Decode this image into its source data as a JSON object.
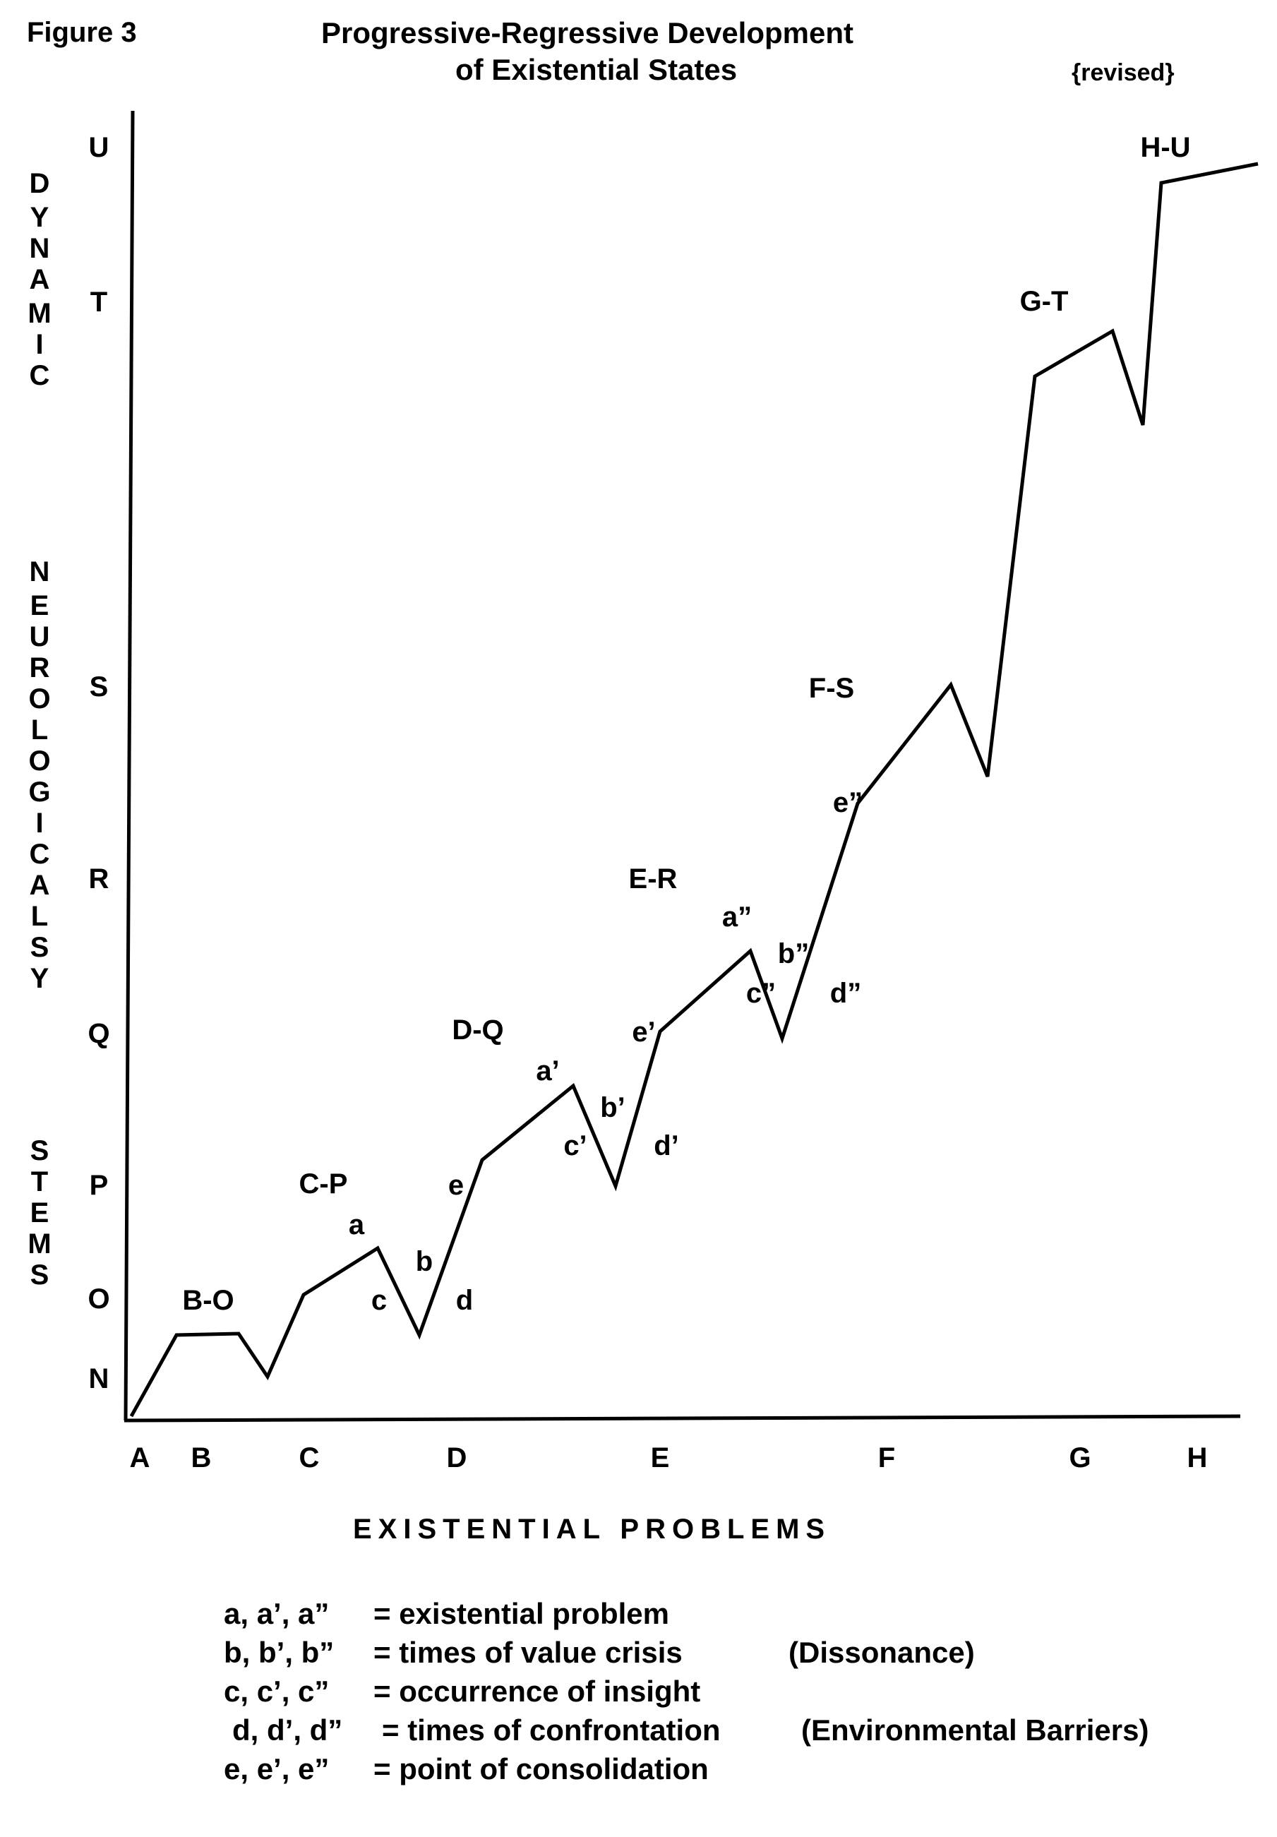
{
  "figure_label": "Figure 3",
  "title_line1": "Progressive-Regressive Development",
  "title_line2": "of Existential States",
  "revised_note": "{revised}",
  "vertical_axis_label": "DYNAMIC NEUROLOGICAL SYSTEMS",
  "x_axis_title": "EXISTENTIAL PROBLEMS",
  "y_levels": [
    "N",
    "O",
    "P",
    "Q",
    "R",
    "S",
    "T",
    "U"
  ],
  "x_levels": [
    "A",
    "B",
    "C",
    "D",
    "E",
    "F",
    "G",
    "H"
  ],
  "state_labels": [
    "B-O",
    "C-P",
    "D-Q",
    "E-R",
    "F-S",
    "G-T",
    "H-U"
  ],
  "point_labels": [
    "a",
    "b",
    "c",
    "d",
    "e",
    "a’",
    "b’",
    "c’",
    "d’",
    "e’",
    "a”",
    "b”",
    "c”",
    "d”",
    "e”"
  ],
  "legend": [
    {
      "key": "a, a’, a”",
      "desc": "= existential problem",
      "note": ""
    },
    {
      "key": "b, b’, b”",
      "desc": "= times of value crisis",
      "note": "(Dissonance)"
    },
    {
      "key": "c, c’, c”",
      "desc": "= occurrence of insight",
      "note": ""
    },
    {
      "key": "d, d’, d”",
      "desc": "= times of confrontation",
      "note": "(Environmental Barriers)"
    },
    {
      "key": "e, e’, e”",
      "desc": "= point of consolidation",
      "note": ""
    }
  ]
}
